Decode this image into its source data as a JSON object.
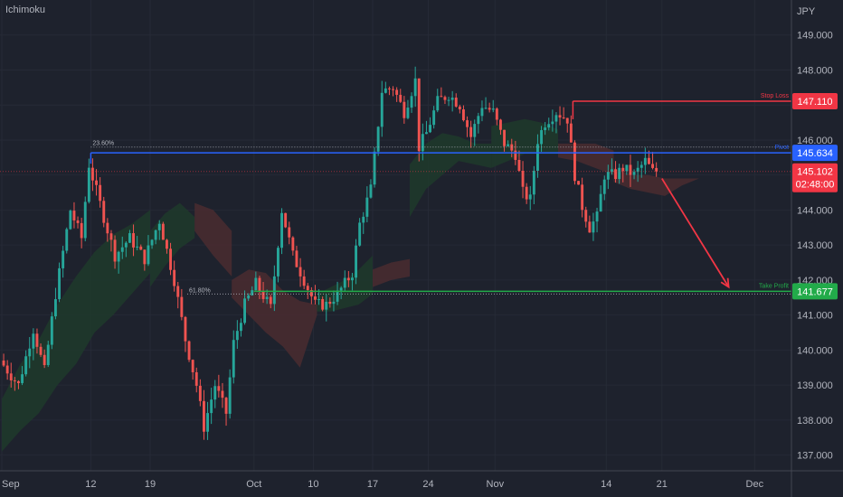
{
  "indicator_label": "Ichimoku",
  "colors": {
    "background": "#1e222d",
    "up": "#26a69a",
    "down": "#ef5350",
    "cloud_bull": "#1f3a2c",
    "cloud_bear": "#4a2b30",
    "stop_loss": "#f23645",
    "take_profit": "#22ab4a",
    "pivot": "#2962ff",
    "current_price": "#f23645"
  },
  "chart_data": {
    "type": "candlestick",
    "currency": "JPY",
    "ylim": [
      136.55,
      150.0
    ],
    "y_ticks": [
      "137.000",
      "138.000",
      "139.000",
      "140.000",
      "141.000",
      "142.000",
      "143.000",
      "144.000",
      "145.000",
      "146.000",
      "147.000",
      "148.000",
      "149.000"
    ],
    "x_ticks": [
      {
        "label": "Sep",
        "bar": 0
      },
      {
        "label": "12",
        "bar": 24
      },
      {
        "label": "19",
        "bar": 40
      },
      {
        "label": "Oct",
        "bar": 68
      },
      {
        "label": "10",
        "bar": 84
      },
      {
        "label": "17",
        "bar": 100
      },
      {
        "label": "24",
        "bar": 115
      },
      {
        "label": "Nov",
        "bar": 133
      },
      {
        "label": "14",
        "bar": 163
      },
      {
        "label": "21",
        "bar": 178
      },
      {
        "label": "Dec",
        "bar": 203
      }
    ],
    "bar_count": 215,
    "path": [
      [
        0,
        139.7
      ],
      [
        5,
        139.0
      ],
      [
        9,
        140.6
      ],
      [
        12,
        139.4
      ],
      [
        15,
        141.6
      ],
      [
        19,
        144.0
      ],
      [
        22,
        143.2
      ],
      [
        24,
        145.3
      ],
      [
        28,
        143.8
      ],
      [
        31,
        142.7
      ],
      [
        35,
        143.2
      ],
      [
        39,
        142.6
      ],
      [
        43,
        143.7
      ],
      [
        47,
        142.0
      ],
      [
        50,
        140.3
      ],
      [
        53,
        139.0
      ],
      [
        55,
        137.8
      ],
      [
        58,
        139.0
      ],
      [
        61,
        138.2
      ],
      [
        63,
        140.2
      ],
      [
        66,
        141.3
      ],
      [
        69,
        141.9
      ],
      [
        73,
        141.2
      ],
      [
        76,
        144.0
      ],
      [
        79,
        142.7
      ],
      [
        82,
        142.0
      ],
      [
        85,
        141.3
      ],
      [
        88,
        141.3
      ],
      [
        91,
        141.6
      ],
      [
        95,
        142.2
      ],
      [
        97,
        143.6
      ],
      [
        100,
        144.6
      ],
      [
        103,
        147.4
      ],
      [
        106,
        147.5
      ],
      [
        109,
        146.8
      ],
      [
        112,
        147.7
      ],
      [
        113,
        145.8
      ],
      [
        115,
        146.2
      ],
      [
        118,
        147.1
      ],
      [
        121,
        147.3
      ],
      [
        124,
        147.0
      ],
      [
        127,
        146.1
      ],
      [
        130,
        147.0
      ],
      [
        133,
        146.8
      ],
      [
        136,
        145.9
      ],
      [
        139,
        145.6
      ],
      [
        141,
        144.5
      ],
      [
        143,
        144.3
      ],
      [
        145,
        146.0
      ],
      [
        147,
        146.5
      ],
      [
        150,
        146.8
      ],
      [
        153,
        146.6
      ],
      [
        155,
        145.0
      ],
      [
        157,
        144.1
      ],
      [
        159,
        143.5
      ],
      [
        161,
        143.8
      ],
      [
        163,
        145.0
      ],
      [
        166,
        145.0
      ],
      [
        168,
        145.2
      ],
      [
        171,
        145.0
      ],
      [
        174,
        145.4
      ],
      [
        176,
        145.1
      ]
    ],
    "cloud": [
      {
        "from": 0,
        "to": 40,
        "type": "bull",
        "top": [
          138.6,
          139.6,
          140.3,
          141.3,
          142.1,
          142.8,
          143.3,
          143.6,
          144.0
        ],
        "bottom": [
          137.1,
          137.7,
          138.2,
          139.0,
          139.6,
          140.5,
          141.0,
          141.6,
          142.2
        ]
      },
      {
        "from": 40,
        "to": 52,
        "type": "bull",
        "top": [
          143.4,
          143.9,
          144.2,
          143.8
        ],
        "bottom": [
          141.8,
          142.4,
          142.9,
          143.2
        ]
      },
      {
        "from": 52,
        "to": 62,
        "type": "bear",
        "top": [
          144.2,
          144.0,
          143.4
        ],
        "bottom": [
          143.4,
          142.7,
          142.1
        ]
      },
      {
        "from": 62,
        "to": 85,
        "type": "bear",
        "top": [
          142.0,
          142.3,
          142.2,
          141.7,
          141.4,
          141.3
        ],
        "bottom": [
          141.5,
          141.0,
          140.5,
          140.1,
          139.5,
          141.0
        ]
      },
      {
        "from": 85,
        "to": 100,
        "type": "bull",
        "top": [
          141.6,
          141.8,
          142.0,
          142.3,
          142.7
        ],
        "bottom": [
          141.1,
          141.1,
          141.2,
          141.3,
          141.6
        ]
      },
      {
        "from": 100,
        "to": 110,
        "type": "bear",
        "top": [
          142.3,
          142.5,
          142.6
        ],
        "bottom": [
          141.8,
          142.0,
          142.1
        ]
      },
      {
        "from": 110,
        "to": 132,
        "type": "bull",
        "top": [
          145.3,
          145.9,
          146.2,
          146.1,
          145.9,
          145.9
        ],
        "bottom": [
          143.8,
          144.6,
          145.0,
          145.4,
          145.3,
          145.2
        ]
      },
      {
        "from": 132,
        "to": 150,
        "type": "bull",
        "top": [
          146.4,
          146.5,
          146.6,
          146.5,
          146.3
        ],
        "bottom": [
          145.2,
          145.4,
          145.6,
          145.6,
          145.6
        ]
      },
      {
        "from": 150,
        "to": 165,
        "type": "bear",
        "top": [
          145.9,
          145.9,
          145.9,
          145.7
        ],
        "bottom": [
          145.5,
          145.4,
          145.2,
          145.0
        ]
      },
      {
        "from": 165,
        "to": 188,
        "type": "bear",
        "top": [
          145.2,
          145.0,
          145.0,
          144.9,
          144.9,
          144.9
        ],
        "bottom": [
          144.8,
          144.6,
          144.5,
          144.4,
          144.7,
          144.9
        ]
      }
    ],
    "levels": {
      "stop_loss": {
        "label": "Stop Loss",
        "value": 147.11,
        "tag": "147.110",
        "from_bar": 154
      },
      "pivot": {
        "label": "Pivot",
        "value": 145.634,
        "tag": "145.634",
        "from_bar": 24
      },
      "take_profit": {
        "label": "Take Profit",
        "value": 141.677,
        "tag": "141.677",
        "from_bar": 68
      },
      "current_price": {
        "value": 145.102,
        "tag": "145.102",
        "countdown": "02:48:00"
      }
    },
    "fib_levels": [
      {
        "label": "23.60%",
        "value": 145.8,
        "from_bar": 24
      },
      {
        "label": "61.80%",
        "value": 141.6,
        "from_bar": 50
      }
    ],
    "projection_arrow": {
      "from": [
        178,
        144.9
      ],
      "to": [
        196,
        141.8
      ]
    }
  }
}
